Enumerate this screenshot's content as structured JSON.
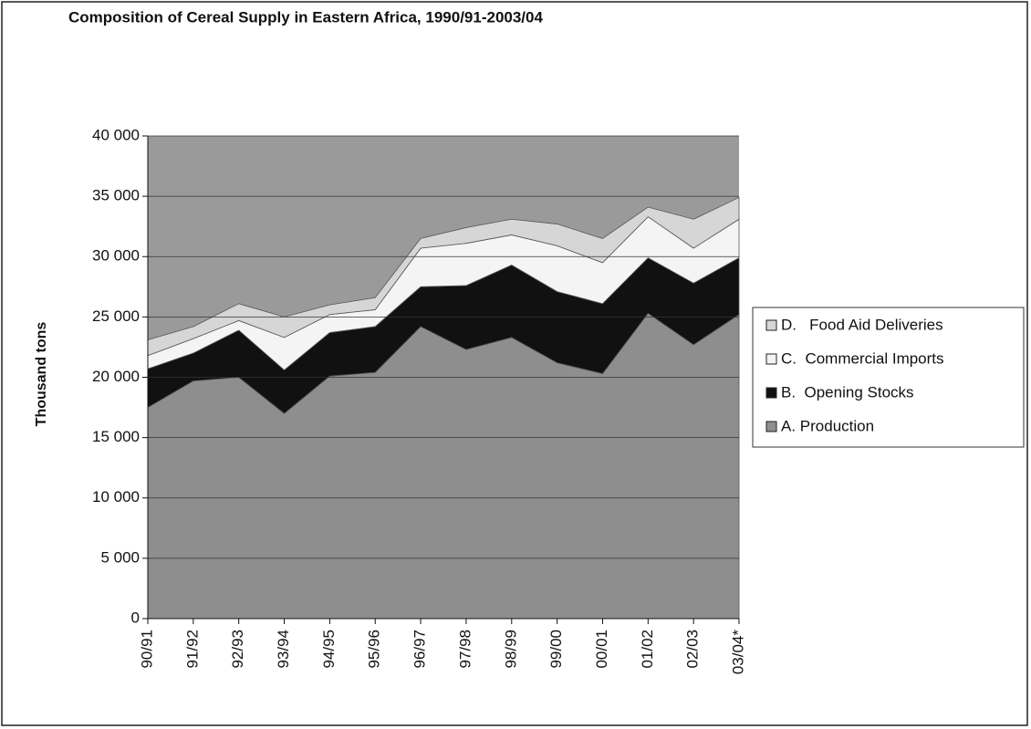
{
  "chart_data": {
    "type": "stacked_area",
    "title": "Composition of Cereal Supply in Eastern Africa, 1990/91-2003/04",
    "y_label": "Thousand tons",
    "categories": [
      "90/91",
      "91/92",
      "92/93",
      "93/94",
      "94/95",
      "95/96",
      "96/97",
      "97/98",
      "98/99",
      "99/00",
      "00/01",
      "01/02",
      "02/03",
      "03/04*"
    ],
    "series": [
      {
        "name": "A. Production",
        "color": "#8e8e8e",
        "values": [
          17500,
          19700,
          20000,
          17000,
          20100,
          20400,
          24200,
          22300,
          23300,
          21200,
          20300,
          25300,
          22700,
          25200
        ]
      },
      {
        "name": "B.  Opening Stocks",
        "color": "#111111",
        "values": [
          3200,
          2300,
          3900,
          3600,
          3600,
          3800,
          3300,
          5300,
          6000,
          5900,
          5800,
          4600,
          5100,
          4700
        ]
      },
      {
        "name": "C.  Commercial Imports",
        "color": "#f4f4f4",
        "values": [
          1100,
          1200,
          800,
          2700,
          1500,
          1400,
          3200,
          3500,
          2500,
          3800,
          3400,
          3400,
          2900,
          3200
        ]
      },
      {
        "name": "D.   Food Aid Deliveries",
        "color": "#d6d6d6",
        "values": [
          1300,
          1000,
          1400,
          1700,
          800,
          1000,
          800,
          1300,
          1300,
          1800,
          2000,
          800,
          2400,
          1800
        ]
      }
    ],
    "ylim": [
      0,
      40000
    ],
    "yticks": [
      0,
      {
        "value": 5000,
        "label": "5 000"
      },
      {
        "value": 10000,
        "label": "10 000"
      },
      {
        "value": 15000,
        "label": "15 000"
      },
      {
        "value": 20000,
        "label": "20 000"
      },
      {
        "value": 25000,
        "label": "25 000"
      },
      {
        "value": 30000,
        "label": "30 000"
      },
      {
        "value": 35000,
        "label": "35 000"
      },
      {
        "value": 40000,
        "label": "40 000"
      }
    ],
    "grid": true,
    "plot_background": "#9a9a9a",
    "legend": "right"
  }
}
